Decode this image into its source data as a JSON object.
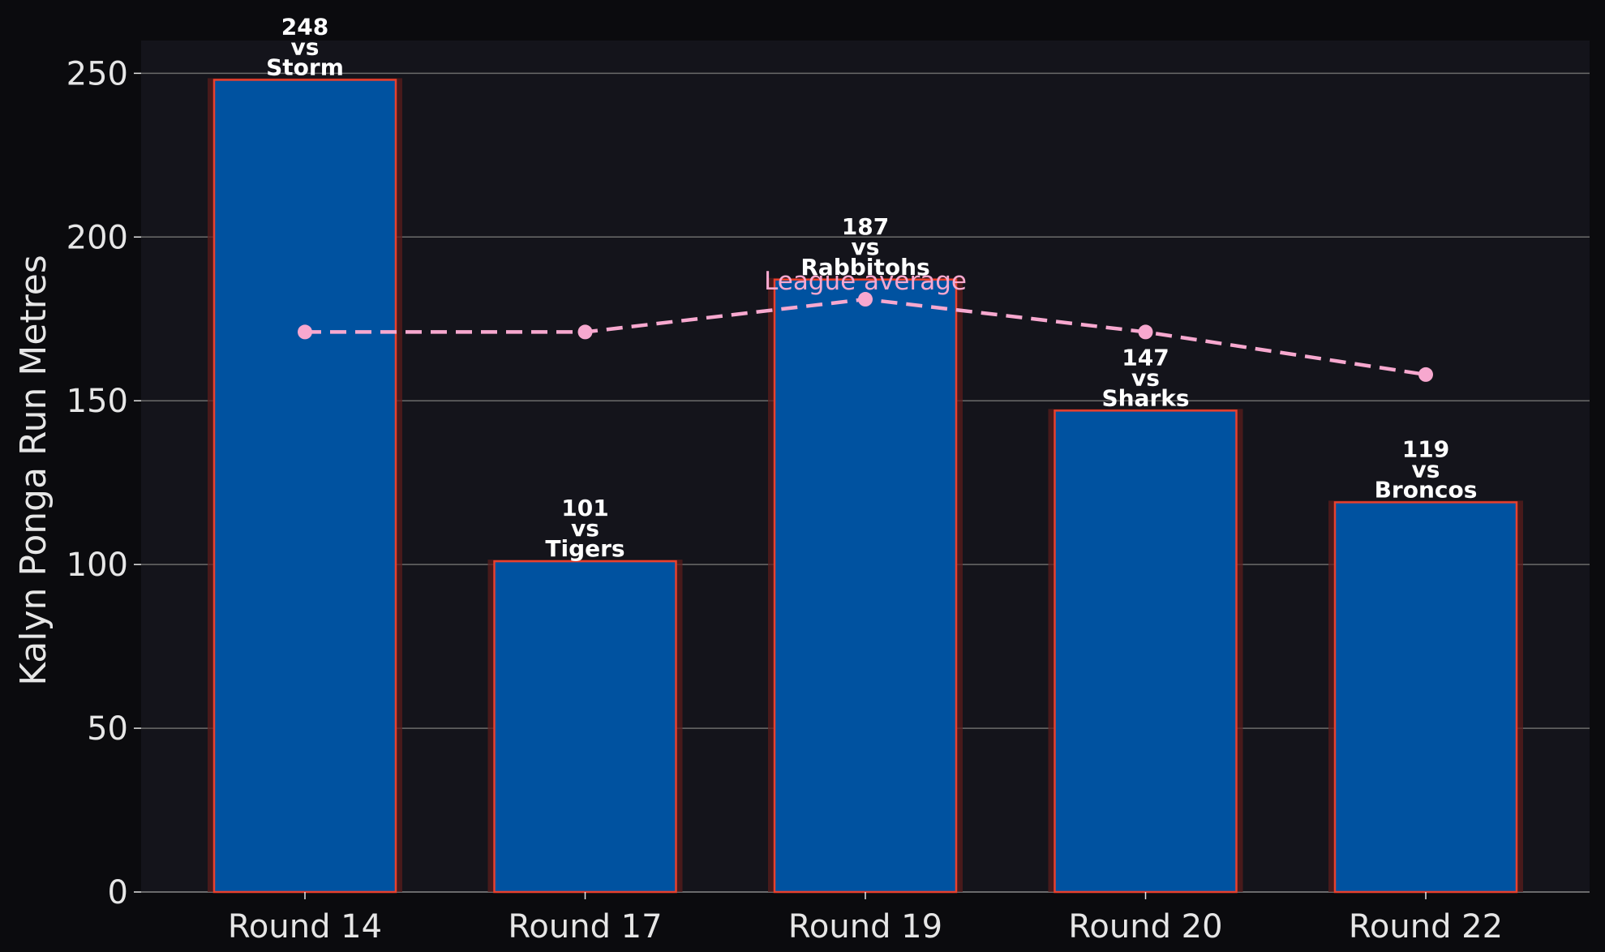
{
  "chart_data": {
    "type": "bar",
    "categories": [
      "Round 14",
      "Round 17",
      "Round 19",
      "Round 20",
      "Round 22"
    ],
    "values": [
      248,
      101,
      187,
      147,
      119
    ],
    "opponents": [
      "Storm",
      "Tigers",
      "Rabbitohs",
      "Sharks",
      "Broncos"
    ],
    "vs_word": "vs",
    "series": [
      {
        "name": "Kalyn Ponga Run Metres",
        "values": [
          248,
          101,
          187,
          147,
          119
        ]
      },
      {
        "name": "League average",
        "values": [
          171,
          171,
          181,
          171,
          158
        ]
      }
    ],
    "average_label": "League average",
    "ylabel": "Kalyn Ponga Run Metres",
    "xlabel": "",
    "ylim": [
      0,
      260
    ],
    "yticks": [
      0,
      50,
      100,
      150,
      200,
      250
    ],
    "grid": "horizontal",
    "colors": {
      "background": "#0b0b0e",
      "plot_background": "#14141b",
      "bar_fill": "#0052a0",
      "bar_edge": "#e8402e",
      "bar_glow": "#5a1c1c",
      "average_line": "#f7a8cf",
      "text": "#e6e6e6",
      "grid": "#6b6b6b"
    }
  }
}
